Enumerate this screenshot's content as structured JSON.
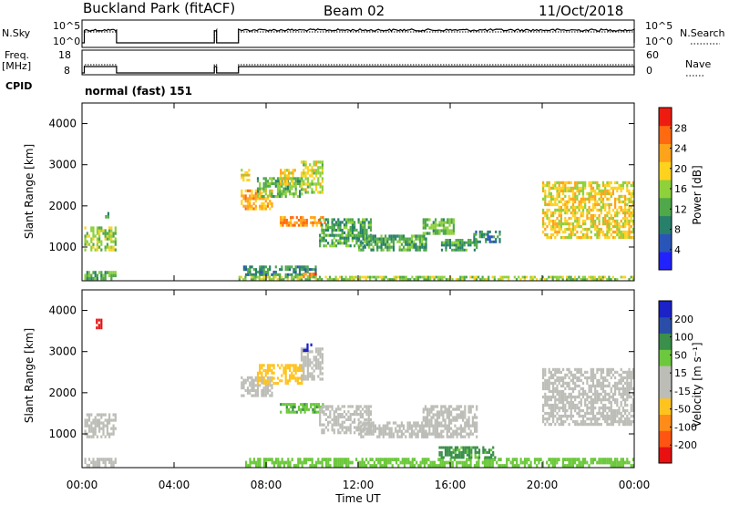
{
  "header": {
    "site": "Buckland Park (fitACF)",
    "beam": "Beam 02",
    "date": "11/Oct/2018"
  },
  "strip_nsky": {
    "left_label": "N.Sky",
    "right_label": "N.Search",
    "tick_top": "10^5",
    "tick_bottom": "10^0"
  },
  "strip_freq": {
    "left_label_line1": "Freq.",
    "left_label_line2": "[MHz]",
    "right_label": "Nave",
    "left_ticks": [
      "18",
      "8"
    ],
    "right_ticks": [
      "60",
      "0"
    ]
  },
  "cpid": {
    "label": "CPID",
    "value": "normal (fast) 151"
  },
  "time_axis": {
    "label": "Time UT",
    "ticks": [
      "00:00",
      "04:00",
      "08:00",
      "12:00",
      "16:00",
      "20:00",
      "00:00"
    ]
  },
  "chart_data": [
    {
      "type": "heatmap",
      "name": "power",
      "ylabel": "Slant Range [km]",
      "ylim": [
        180,
        4500
      ],
      "yticks": [
        "1000",
        "2000",
        "3000",
        "4000"
      ],
      "xlim_hours": [
        0,
        24
      ],
      "colorbar": {
        "label": "Power [dB]",
        "ticks": [
          "4",
          "8",
          "12",
          "16",
          "20",
          "24",
          "28"
        ],
        "colors": [
          "#2222ff",
          "#2a55b8",
          "#28806a",
          "#4fa84a",
          "#8ed13a",
          "#ffd21e",
          "#ffa31a",
          "#ff6a10",
          "#ee1c10"
        ]
      },
      "echo_regions": [
        {
          "t": [
            0.1,
            1.5
          ],
          "r": [
            900,
            1500
          ],
          "v": 18
        },
        {
          "t": [
            0.1,
            1.5
          ],
          "r": [
            200,
            420
          ],
          "v": 16
        },
        {
          "t": [
            1.0,
            1.3
          ],
          "r": [
            1700,
            1850
          ],
          "v": 12
        },
        {
          "t": [
            6.9,
            8.3
          ],
          "r": [
            1900,
            2400
          ],
          "v": 24
        },
        {
          "t": [
            7.6,
            9.6
          ],
          "r": [
            2200,
            2700
          ],
          "v": 16
        },
        {
          "t": [
            8.6,
            9.3
          ],
          "r": [
            2500,
            2900
          ],
          "v": 22
        },
        {
          "t": [
            9.5,
            10.5
          ],
          "r": [
            2300,
            3100
          ],
          "v": 20
        },
        {
          "t": [
            8.6,
            10.6
          ],
          "r": [
            1500,
            1750
          ],
          "v": 26
        },
        {
          "t": [
            6.9,
            7.3
          ],
          "r": [
            2600,
            2900
          ],
          "v": 22
        },
        {
          "t": [
            10.3,
            12.6
          ],
          "r": [
            1000,
            1700
          ],
          "v": 14
        },
        {
          "t": [
            7.0,
            10.2
          ],
          "r": [
            300,
            550
          ],
          "v": 12
        },
        {
          "t": [
            9.6,
            10.2
          ],
          "r": [
            250,
            380
          ],
          "v": 28
        },
        {
          "t": [
            12.0,
            15.0
          ],
          "r": [
            900,
            1300
          ],
          "v": 14
        },
        {
          "t": [
            14.8,
            16.2
          ],
          "r": [
            1300,
            1700
          ],
          "v": 16
        },
        {
          "t": [
            15.6,
            17.2
          ],
          "r": [
            900,
            1200
          ],
          "v": 14
        },
        {
          "t": [
            17.0,
            18.2
          ],
          "r": [
            1100,
            1400
          ],
          "v": 12
        },
        {
          "t": [
            20.0,
            24.0
          ],
          "r": [
            1200,
            2600
          ],
          "v": 22
        },
        {
          "t": [
            6.8,
            24.0
          ],
          "r": [
            190,
            300
          ],
          "v": 18
        }
      ]
    },
    {
      "type": "heatmap",
      "name": "velocity",
      "ylabel": "Slant Range [km]",
      "ylim": [
        180,
        4500
      ],
      "yticks": [
        "1000",
        "2000",
        "3000",
        "4000"
      ],
      "xlim_hours": [
        0,
        24
      ],
      "colorbar": {
        "label": "Velocity [m s⁻¹]",
        "ticks": [
          "-200",
          "-100",
          "-50",
          "-15",
          "15",
          "50",
          "100",
          "200"
        ],
        "colors": [
          "#e81010",
          "#ff5512",
          "#ff8c18",
          "#ffc320",
          "#bdbdb8",
          "#bdbdb8",
          "#6cc83c",
          "#3a8f4a",
          "#2a4ea8",
          "#1a22c8"
        ]
      },
      "echo_regions": [
        {
          "t": [
            0.1,
            1.5
          ],
          "r": [
            900,
            1500
          ],
          "v": 0
        },
        {
          "t": [
            0.1,
            1.5
          ],
          "r": [
            200,
            420
          ],
          "v": 0
        },
        {
          "t": [
            6.9,
            8.3
          ],
          "r": [
            1900,
            2400
          ],
          "v": 0
        },
        {
          "t": [
            7.6,
            9.6
          ],
          "r": [
            2200,
            2700
          ],
          "v": -30
        },
        {
          "t": [
            9.5,
            10.5
          ],
          "r": [
            2300,
            3100
          ],
          "v": 0
        },
        {
          "t": [
            8.6,
            10.6
          ],
          "r": [
            1500,
            1750
          ],
          "v": 40
        },
        {
          "t": [
            10.3,
            12.6
          ],
          "r": [
            1000,
            1700
          ],
          "v": 0
        },
        {
          "t": [
            12.0,
            15.0
          ],
          "r": [
            900,
            1300
          ],
          "v": 0
        },
        {
          "t": [
            14.8,
            17.2
          ],
          "r": [
            900,
            1700
          ],
          "v": 0
        },
        {
          "t": [
            20.0,
            24.0
          ],
          "r": [
            1200,
            2600
          ],
          "v": 0
        },
        {
          "t": [
            7.0,
            24.0
          ],
          "r": [
            190,
            420
          ],
          "v": 30
        },
        {
          "t": [
            15.5,
            18.0
          ],
          "r": [
            400,
            700
          ],
          "v": 60
        },
        {
          "t": [
            9.6,
            10.0
          ],
          "r": [
            3000,
            3200
          ],
          "v": 250
        },
        {
          "t": [
            0.6,
            0.9
          ],
          "r": [
            3550,
            3800
          ],
          "v": -250
        }
      ]
    }
  ]
}
